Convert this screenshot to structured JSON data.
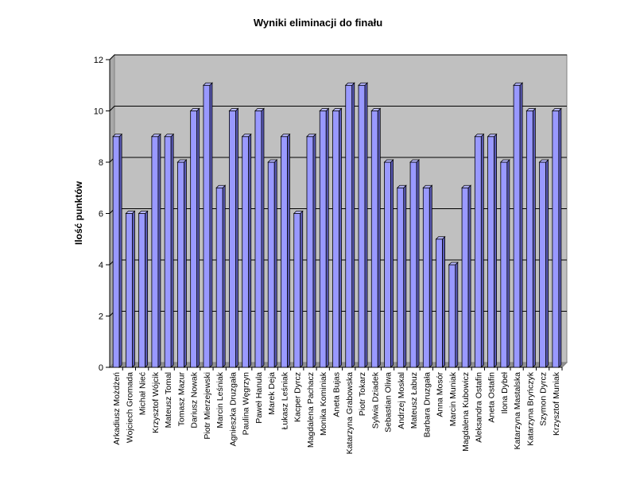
{
  "chart_data": {
    "type": "bar",
    "title": "Wyniki eliminacji do finału",
    "ylabel": "Ilość punktów",
    "xlabel": "",
    "ylim": [
      0,
      12
    ],
    "yticks": [
      0,
      2,
      4,
      6,
      8,
      10,
      12
    ],
    "grid": true,
    "legend": "none",
    "colors": {
      "bar_front": "#9999ff",
      "bar_side": "#5b5bb8",
      "bar_top": "#b8b8ff",
      "plot_bg": "#c0c0c0",
      "gridline": "#000000"
    },
    "categories": [
      "Arkadiusz Możdżeń",
      "Wojciech Gromada",
      "Michał Nieć",
      "Krzysztof Wójcik",
      "Mateusz Tomal",
      "Tomasz Mazur",
      "Dariusz Nowak",
      "Piotr Mierzejewski",
      "Marcin Leśniak",
      "Agnieszka Druzgała",
      "Paulina Węgrzyn",
      "Paweł Hanula",
      "Marek Deja",
      "Łukasz Leśniak",
      "Kacper Dyrcz",
      "Magdalena Pachacz",
      "Monika Kominiak",
      "Aneta Bujas",
      "Katarzyna Grabowska",
      "Piotr Tokarz",
      "Sylwia Dziadek",
      "Sebastian Oliwa",
      "Andrzej Moskal",
      "Mateusz Łabuz",
      "Barbara Druzgała",
      "Anna Mosór",
      "Marcin Muniak",
      "Magdalena Kubowicz",
      "Aleksandra Ostafin",
      "Aneta Ostafin",
      "Ilona Dybeł",
      "Katarzyna Mastalska",
      "Katarzyna Bryńczyk",
      "Szymon Dyrcz",
      "Krzysztof Muniak"
    ],
    "values": [
      9,
      6,
      6,
      9,
      9,
      8,
      10,
      11,
      7,
      10,
      9,
      10,
      8,
      9,
      6,
      9,
      10,
      10,
      11,
      11,
      10,
      8,
      7,
      8,
      7,
      5,
      4,
      7,
      9,
      9,
      8,
      11,
      10,
      8,
      10
    ]
  }
}
